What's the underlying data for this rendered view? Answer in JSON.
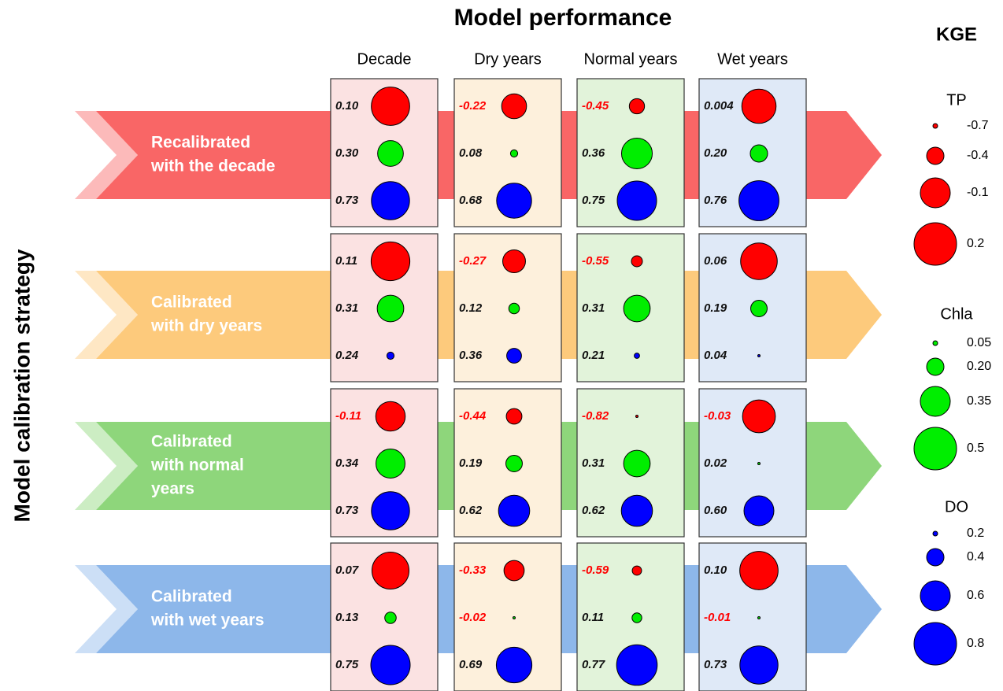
{
  "title": "Model performance",
  "y_title": "Model calibration strategy",
  "columns": [
    {
      "name": "Decade",
      "color": "#fbe2e2"
    },
    {
      "name": "Dry years",
      "color": "#fdf0dc"
    },
    {
      "name": "Normal years",
      "color": "#e2f3da"
    },
    {
      "name": "Wet years",
      "color": "#dfe9f7"
    }
  ],
  "rows": [
    {
      "lines": [
        "Recalibrated",
        "with the decade"
      ],
      "color": "#f96666",
      "cells": [
        [
          {
            "value": 0.1,
            "label": "0.10"
          },
          {
            "value": 0.3,
            "label": "0.30"
          },
          0.73
        ],
        [
          -0.22,
          0.08,
          0.68
        ],
        [
          -0.45,
          0.36,
          0.75
        ],
        [
          0.004,
          {
            "value": 0.2,
            "label": "0.20"
          },
          0.76
        ]
      ]
    },
    {
      "lines": [
        "Calibrated",
        "with dry years"
      ],
      "color": "#fdca7c",
      "cells": [
        [
          0.11,
          0.31,
          0.24
        ],
        [
          -0.27,
          0.12,
          0.36
        ],
        [
          -0.55,
          0.31,
          0.21
        ],
        [
          0.06,
          0.19,
          0.04
        ]
      ]
    },
    {
      "lines": [
        "Calibrated",
        "with normal",
        "years"
      ],
      "color": "#8ed67b",
      "cells": [
        [
          -0.11,
          0.34,
          0.73
        ],
        [
          -0.44,
          0.19,
          0.62
        ],
        [
          -0.82,
          0.31,
          0.62
        ],
        [
          -0.03,
          0.02,
          {
            "value": 0.6,
            "label": "0.60"
          }
        ]
      ]
    },
    {
      "lines": [
        "Calibrated",
        "with wet years"
      ],
      "color": "#8db7ea",
      "cells": [
        [
          0.07,
          0.13,
          0.75
        ],
        [
          -0.33,
          -0.02,
          0.69
        ],
        [
          -0.59,
          0.11,
          0.77
        ],
        [
          {
            "value": 0.1,
            "label": "0.10"
          },
          -0.01,
          0.73
        ]
      ]
    }
  ],
  "legend": {
    "title": "KGE",
    "groups": [
      {
        "name": "TP",
        "color": "#ff0000",
        "values": [
          -0.7,
          -0.4,
          -0.1,
          0.2
        ]
      },
      {
        "name": "Chla",
        "color": "#00ee00",
        "values": [
          0.05,
          {
            "value": 0.2,
            "label": "0.20"
          },
          0.35,
          0.5
        ]
      },
      {
        "name": "DO",
        "color": "#0000ff",
        "values": [
          0.2,
          0.4,
          0.6,
          0.8
        ]
      }
    ]
  }
}
